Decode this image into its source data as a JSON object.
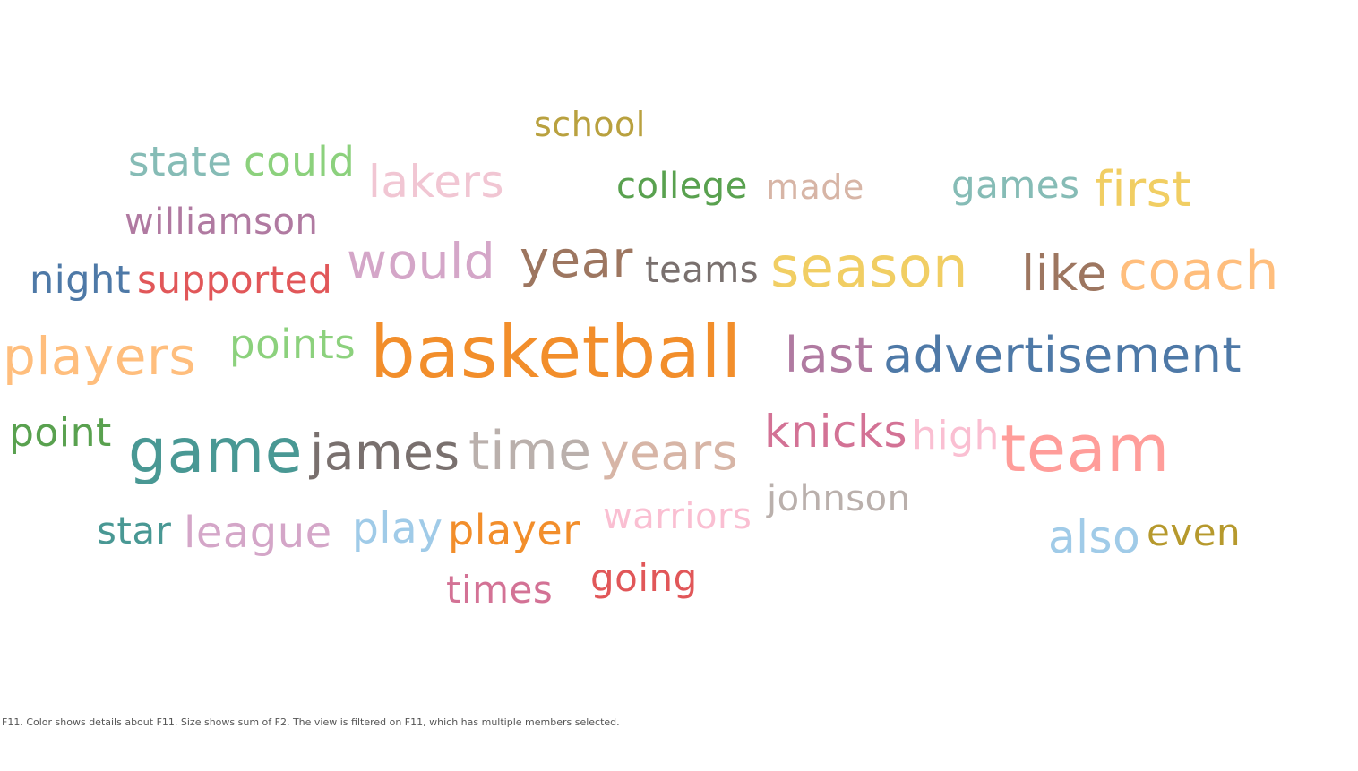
{
  "chart_data": {
    "type": "word-cloud",
    "words": [
      {
        "text": "school",
        "size": 38,
        "color": "#b9a13f"
      },
      {
        "text": "state",
        "size": 45,
        "color": "#86bcb6"
      },
      {
        "text": "could",
        "size": 45,
        "color": "#8cd17d"
      },
      {
        "text": "lakers",
        "size": 50,
        "color": "#f1c6d3"
      },
      {
        "text": "college",
        "size": 40,
        "color": "#59a14f"
      },
      {
        "text": "made",
        "size": 38,
        "color": "#d7b5a6"
      },
      {
        "text": "games",
        "size": 42,
        "color": "#86bcb6"
      },
      {
        "text": "first",
        "size": 54,
        "color": "#f1ce63"
      },
      {
        "text": "williamson",
        "size": 40,
        "color": "#b07aa1"
      },
      {
        "text": "would",
        "size": 55,
        "color": "#d4a6c8"
      },
      {
        "text": "year",
        "size": 56,
        "color": "#9d7660"
      },
      {
        "text": "teams",
        "size": 40,
        "color": "#79706e"
      },
      {
        "text": "season",
        "size": 62,
        "color": "#f1ce63"
      },
      {
        "text": "like",
        "size": 55,
        "color": "#9d7660"
      },
      {
        "text": "coach",
        "size": 60,
        "color": "#ffbe7d"
      },
      {
        "text": "night",
        "size": 43,
        "color": "#4e79a7"
      },
      {
        "text": "supported",
        "size": 42,
        "color": "#e15759"
      },
      {
        "text": "players",
        "size": 58,
        "color": "#ffbe7d"
      },
      {
        "text": "points",
        "size": 45,
        "color": "#8cd17d"
      },
      {
        "text": "basketball",
        "size": 80,
        "color": "#f28e2b"
      },
      {
        "text": "last",
        "size": 54,
        "color": "#b07aa1"
      },
      {
        "text": "advertisement",
        "size": 54,
        "color": "#4e79a7"
      },
      {
        "text": "point",
        "size": 44,
        "color": "#59a14f"
      },
      {
        "text": "game",
        "size": 68,
        "color": "#499894"
      },
      {
        "text": "james",
        "size": 55,
        "color": "#79706e"
      },
      {
        "text": "time",
        "size": 60,
        "color": "#bab0ac"
      },
      {
        "text": "years",
        "size": 55,
        "color": "#d7b5a6"
      },
      {
        "text": "knicks",
        "size": 50,
        "color": "#d37295"
      },
      {
        "text": "high",
        "size": 44,
        "color": "#fabfd2"
      },
      {
        "text": "team",
        "size": 72,
        "color": "#ff9d9a"
      },
      {
        "text": "johnson",
        "size": 40,
        "color": "#bab0ac"
      },
      {
        "text": "star",
        "size": 42,
        "color": "#499894"
      },
      {
        "text": "league",
        "size": 48,
        "color": "#d4a6c8"
      },
      {
        "text": "play",
        "size": 47,
        "color": "#a0cbe8"
      },
      {
        "text": "player",
        "size": 46,
        "color": "#f28e2b"
      },
      {
        "text": "warriors",
        "size": 40,
        "color": "#fabfd2"
      },
      {
        "text": "also",
        "size": 50,
        "color": "#a0cbe8"
      },
      {
        "text": "even",
        "size": 42,
        "color": "#b6992d"
      },
      {
        "text": "times",
        "size": 42,
        "color": "#d37295"
      },
      {
        "text": "going",
        "size": 42,
        "color": "#e15759"
      }
    ]
  },
  "caption": "F11.  Color shows details about F11.  Size shows sum of F2. The view is filtered on F11, which has multiple members selected."
}
